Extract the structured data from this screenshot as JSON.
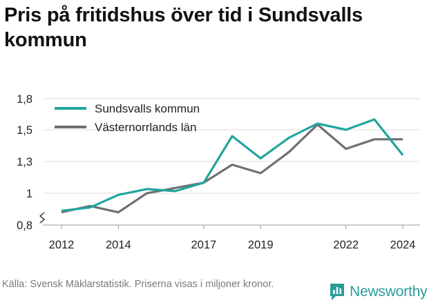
{
  "title": "Pris på fritidshus över tid i Sundsvalls kommun",
  "footer": {
    "source": "Källa: Svensk Mäklarstatistik. Priserna visas i miljoner kronor."
  },
  "brand": {
    "name": "Newsworthy",
    "icon": "newsworthy-logo-icon",
    "color": "#2a9c97"
  },
  "chart_data": {
    "type": "line",
    "title": "Pris på fritidshus över tid i Sundsvalls kommun",
    "xlabel": "",
    "ylabel": "",
    "x": [
      2012,
      2013,
      2014,
      2015,
      2016,
      2017,
      2018,
      2019,
      2020,
      2021,
      2022,
      2023,
      2024
    ],
    "x_ticks": [
      2012,
      2014,
      2017,
      2019,
      2022,
      2024
    ],
    "y_ticks": [
      0.8,
      1,
      1.3,
      1.5,
      1.8
    ],
    "y_tick_labels": [
      "0,8",
      "1",
      "1,3",
      "1,5",
      "1,8"
    ],
    "ylim": [
      0.8,
      1.8
    ],
    "y_axis_break": true,
    "grid": true,
    "legend_position": "top-left",
    "series": [
      {
        "name": "Sundsvalls kommun",
        "color": "#21a59c",
        "values": [
          0.89,
          0.91,
          0.99,
          1.04,
          1.02,
          1.1,
          1.46,
          1.32,
          1.45,
          1.56,
          1.5,
          1.6,
          1.34
        ]
      },
      {
        "name": "Västernorrlands län",
        "color": "#6f6f74",
        "values": [
          0.88,
          0.92,
          0.88,
          1.0,
          1.05,
          1.1,
          1.27,
          1.19,
          1.36,
          1.55,
          1.38,
          1.44,
          1.44
        ]
      }
    ]
  }
}
